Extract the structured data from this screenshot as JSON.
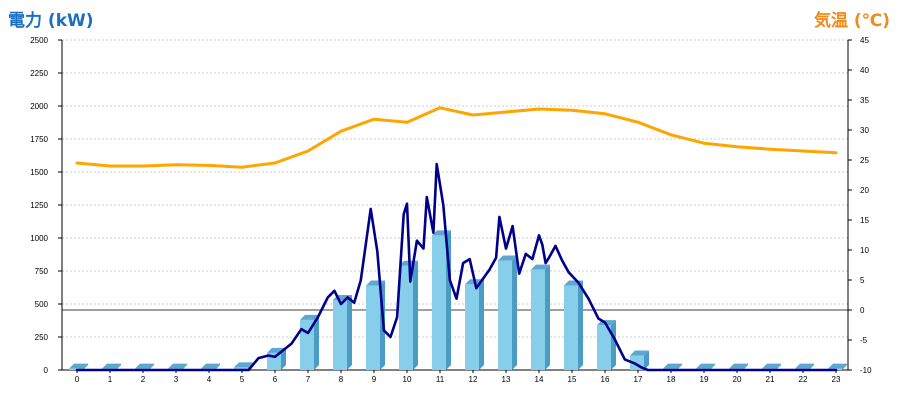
{
  "chart_data": {
    "type": "bar+line",
    "ylabel_left": "電力 (kW)",
    "ylabel_right": "気温 (℃)",
    "x_ticks": [
      "0",
      "1",
      "2",
      "3",
      "4",
      "5",
      "6",
      "7",
      "8",
      "9",
      "10",
      "11",
      "12",
      "13",
      "14",
      "15",
      "16",
      "17",
      "18",
      "19",
      "20",
      "21",
      "22",
      "23"
    ],
    "ylim_left": [
      0,
      2500
    ],
    "y_ticks_left": [
      "0",
      "250",
      "500",
      "750",
      "1000",
      "1250",
      "1500",
      "1750",
      "2000",
      "2250",
      "2500"
    ],
    "ylim_right": [
      -10,
      45
    ],
    "y_ticks_right": [
      "-10",
      "-5",
      "0",
      "5",
      "10",
      "15",
      "20",
      "25",
      "30",
      "35",
      "40",
      "45"
    ],
    "grid": true,
    "bars": {
      "name": "電力 (kW)",
      "axis": "left",
      "color": "#87ceeb",
      "x": [
        0,
        1,
        2,
        3,
        4,
        5,
        6,
        7,
        8,
        9,
        10,
        11,
        12,
        13,
        14,
        15,
        16,
        17,
        18,
        19,
        20,
        21,
        22,
        23
      ],
      "values": [
        10,
        10,
        10,
        10,
        10,
        20,
        130,
        380,
        530,
        640,
        790,
        1020,
        650,
        830,
        760,
        640,
        340,
        110,
        10,
        10,
        10,
        10,
        10,
        10
      ]
    },
    "power_line": {
      "name": "電力 (kW)",
      "axis": "left",
      "color": "#00008b",
      "x": [
        0,
        1,
        2,
        3,
        4,
        5,
        5.2,
        5.5,
        5.8,
        6.0,
        6.2,
        6.5,
        6.8,
        7.0,
        7.3,
        7.6,
        7.8,
        8.0,
        8.2,
        8.4,
        8.6,
        8.9,
        9.1,
        9.3,
        9.5,
        9.7,
        9.9,
        10.0,
        10.1,
        10.3,
        10.5,
        10.6,
        10.8,
        10.9,
        11.1,
        11.3,
        11.5,
        11.7,
        11.9,
        12.1,
        12.3,
        12.5,
        12.7,
        12.8,
        13.0,
        13.2,
        13.4,
        13.6,
        13.8,
        14.0,
        14.1,
        14.2,
        14.3,
        14.5,
        14.7,
        14.9,
        15.2,
        15.5,
        15.8,
        16.0,
        16.3,
        16.6,
        16.9,
        17.1,
        17.3,
        17.5,
        17.7,
        18,
        19,
        20,
        21,
        22,
        23
      ],
      "values": [
        0,
        0,
        0,
        0,
        0,
        0,
        0,
        90,
        110,
        100,
        140,
        200,
        310,
        280,
        400,
        550,
        600,
        500,
        550,
        510,
        680,
        1220,
        900,
        300,
        250,
        400,
        1180,
        1260,
        670,
        980,
        920,
        1310,
        1040,
        1560,
        1250,
        680,
        540,
        810,
        840,
        620,
        690,
        760,
        850,
        1160,
        920,
        1090,
        730,
        880,
        840,
        1020,
        950,
        810,
        850,
        940,
        830,
        740,
        660,
        540,
        390,
        360,
        230,
        80,
        50,
        20,
        0,
        0,
        0,
        0,
        0,
        0,
        0,
        0,
        0
      ]
    },
    "temperature_line": {
      "name": "気温 (℃)",
      "axis": "right",
      "color": "#ffa500",
      "x": [
        0,
        1,
        2,
        3,
        4,
        5,
        6,
        7,
        8,
        9,
        10,
        11,
        12,
        13,
        14,
        15,
        16,
        17,
        18,
        19,
        20,
        21,
        22,
        23
      ],
      "values": [
        24.5,
        24,
        24,
        24.2,
        24.1,
        23.8,
        24.5,
        26.5,
        29.8,
        31.8,
        31.3,
        33.7,
        32.5,
        33,
        33.5,
        33.3,
        32.7,
        31.3,
        29.2,
        27.8,
        27.2,
        26.8,
        26.5,
        26.2
      ]
    }
  }
}
